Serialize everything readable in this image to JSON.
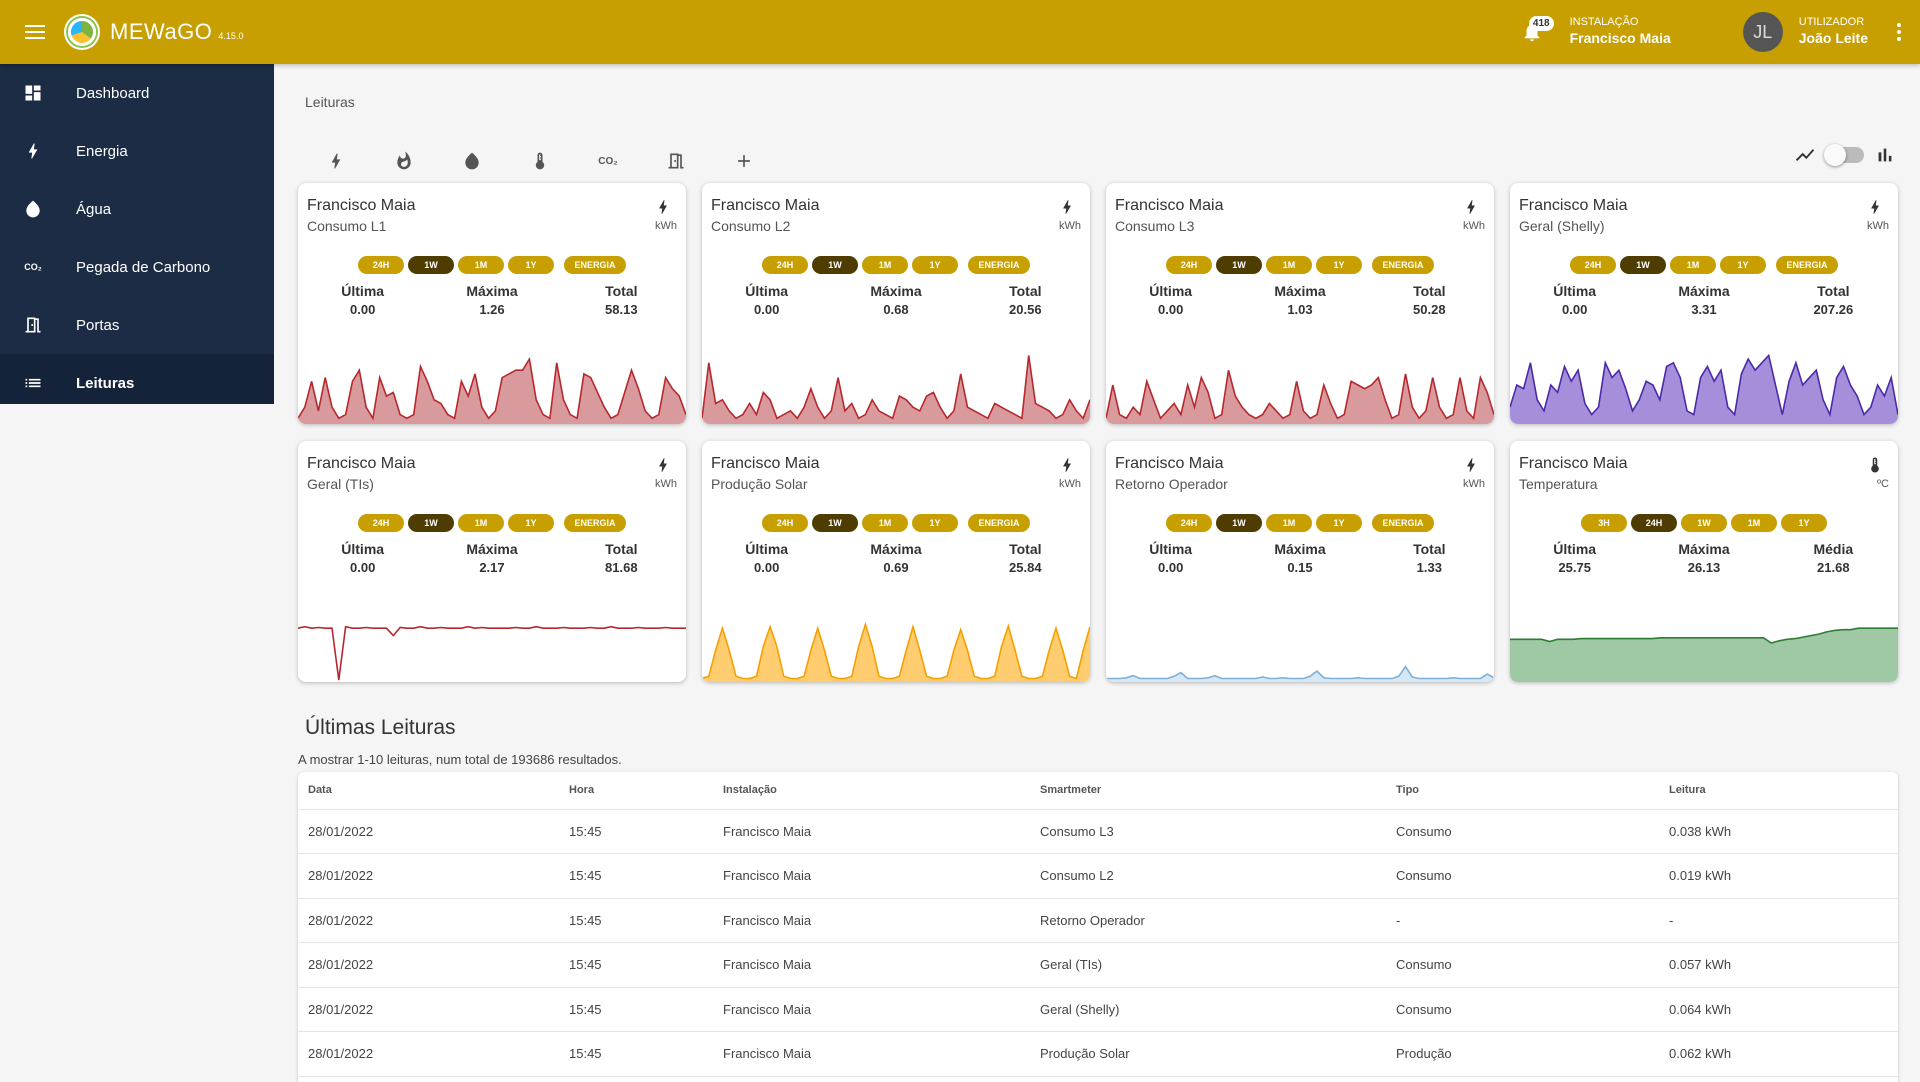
{
  "header": {
    "brand": "MEWaGO",
    "version": "4.15.0",
    "notifications_count": "418",
    "installation_label": "INSTALAÇÃO",
    "installation_name": "Francisco Maia",
    "user_label": "UTILIZADOR",
    "user_name": "João Leite",
    "user_initials": "JL",
    "accent_color": "#c89f00"
  },
  "sidebar": {
    "items": [
      {
        "label": "Dashboard",
        "icon": "dashboard-icon"
      },
      {
        "label": "Energia",
        "icon": "bolt-icon"
      },
      {
        "label": "Água",
        "icon": "water-drop-icon"
      },
      {
        "label": "Pegada de Carbono",
        "icon": "co2-icon"
      },
      {
        "label": "Portas",
        "icon": "door-icon"
      },
      {
        "label": "Leituras",
        "icon": "list-icon",
        "active": true
      }
    ]
  },
  "breadcrumb": "Leituras",
  "filters": {
    "icons": [
      "bolt-icon",
      "flame-icon",
      "water-drop-icon",
      "thermometer-icon",
      "co2-icon",
      "door-icon",
      "add-icon"
    ],
    "co2_text": "CO₂"
  },
  "cards": [
    {
      "title": "Francisco Maia",
      "subtitle": "Consumo L1",
      "unit": "kWh",
      "icon": "bolt-icon",
      "chips": [
        "24H",
        "1W",
        "1M",
        "1Y",
        "ENERGIA"
      ],
      "active_chip": "1W",
      "stats": [
        {
          "label": "Última",
          "value": "0.00"
        },
        {
          "label": "Máxima",
          "value": "1.26"
        },
        {
          "label": "Total",
          "value": "58.13"
        }
      ],
      "chart_color": "#b7282e",
      "chart_fill": "#d99a9d",
      "series": [
        0.05,
        0.2,
        0.55,
        0.15,
        0.6,
        0.2,
        0.05,
        0.1,
        0.55,
        0.7,
        0.2,
        0.05,
        0.6,
        0.35,
        0.4,
        0.1,
        0.05,
        0.1,
        0.75,
        0.55,
        0.3,
        0.25,
        0.1,
        0.05,
        0.55,
        0.35,
        0.65,
        0.2,
        0.05,
        0.15,
        0.6,
        0.65,
        0.7,
        0.7,
        0.85,
        0.3,
        0.1,
        0.05,
        0.8,
        0.3,
        0.1,
        0.05,
        0.65,
        0.6,
        0.4,
        0.2,
        0.05,
        0.1,
        0.4,
        0.7,
        0.45,
        0.15,
        0.05,
        0.1,
        0.6,
        0.45,
        0.35,
        0.1
      ]
    },
    {
      "title": "Francisco Maia",
      "subtitle": "Consumo L2",
      "unit": "kWh",
      "icon": "bolt-icon",
      "chips": [
        "24H",
        "1W",
        "1M",
        "1Y",
        "ENERGIA"
      ],
      "active_chip": "1W",
      "stats": [
        {
          "label": "Última",
          "value": "0.00"
        },
        {
          "label": "Máxima",
          "value": "0.68"
        },
        {
          "label": "Total",
          "value": "20.56"
        }
      ],
      "chart_color": "#b7282e",
      "chart_fill": "#d99a9d",
      "series": [
        0.05,
        0.8,
        0.25,
        0.3,
        0.15,
        0.05,
        0.1,
        0.25,
        0.1,
        0.4,
        0.3,
        0.05,
        0.1,
        0.15,
        0.05,
        0.2,
        0.45,
        0.2,
        0.05,
        0.15,
        0.6,
        0.15,
        0.25,
        0.05,
        0.1,
        0.3,
        0.15,
        0.1,
        0.05,
        0.35,
        0.3,
        0.2,
        0.15,
        0.35,
        0.4,
        0.2,
        0.05,
        0.15,
        0.65,
        0.2,
        0.15,
        0.1,
        0.05,
        0.25,
        0.2,
        0.15,
        0.1,
        0.05,
        0.9,
        0.25,
        0.2,
        0.15,
        0.05,
        0.1,
        0.3,
        0.15,
        0.05,
        0.3
      ]
    },
    {
      "title": "Francisco Maia",
      "subtitle": "Consumo L3",
      "unit": "kWh",
      "icon": "bolt-icon",
      "chips": [
        "24H",
        "1W",
        "1M",
        "1Y",
        "ENERGIA"
      ],
      "active_chip": "1W",
      "stats": [
        {
          "label": "Última",
          "value": "0.00"
        },
        {
          "label": "Máxima",
          "value": "1.03"
        },
        {
          "label": "Total",
          "value": "50.28"
        }
      ],
      "chart_color": "#b7282e",
      "chart_fill": "#d99a9d",
      "series": [
        0.05,
        0.5,
        0.1,
        0.05,
        0.2,
        0.1,
        0.55,
        0.3,
        0.05,
        0.15,
        0.25,
        0.1,
        0.5,
        0.2,
        0.6,
        0.4,
        0.05,
        0.1,
        0.7,
        0.35,
        0.2,
        0.1,
        0.05,
        0.1,
        0.25,
        0.15,
        0.05,
        0.1,
        0.55,
        0.15,
        0.05,
        0.1,
        0.5,
        0.25,
        0.05,
        0.1,
        0.55,
        0.5,
        0.45,
        0.5,
        0.6,
        0.3,
        0.05,
        0.1,
        0.65,
        0.2,
        0.05,
        0.15,
        0.6,
        0.2,
        0.05,
        0.1,
        0.6,
        0.15,
        0.05,
        0.6,
        0.4,
        0.1
      ]
    },
    {
      "title": "Francisco Maia",
      "subtitle": "Geral (Shelly)",
      "unit": "kWh",
      "icon": "bolt-icon",
      "chips": [
        "24H",
        "1W",
        "1M",
        "1Y",
        "ENERGIA"
      ],
      "active_chip": "1W",
      "stats": [
        {
          "label": "Última",
          "value": "0.00"
        },
        {
          "label": "Máxima",
          "value": "3.31"
        },
        {
          "label": "Total",
          "value": "207.26"
        }
      ],
      "chart_color": "#4b2aa8",
      "chart_fill": "#a58fda",
      "series": [
        0.2,
        0.5,
        0.45,
        0.8,
        0.3,
        0.15,
        0.5,
        0.4,
        0.75,
        0.55,
        0.7,
        0.25,
        0.1,
        0.2,
        0.8,
        0.6,
        0.7,
        0.45,
        0.15,
        0.3,
        0.55,
        0.5,
        0.3,
        0.75,
        0.8,
        0.6,
        0.15,
        0.1,
        0.6,
        0.75,
        0.55,
        0.7,
        0.2,
        0.1,
        0.65,
        0.85,
        0.7,
        0.8,
        0.9,
        0.5,
        0.1,
        0.55,
        0.8,
        0.5,
        0.6,
        0.7,
        0.3,
        0.1,
        0.6,
        0.75,
        0.5,
        0.35,
        0.1,
        0.2,
        0.5,
        0.35,
        0.6,
        0.1
      ]
    },
    {
      "title": "Francisco Maia",
      "subtitle": "Geral (TIs)",
      "unit": "kWh",
      "icon": "bolt-icon",
      "chips": [
        "24H",
        "1W",
        "1M",
        "1Y",
        "ENERGIA"
      ],
      "active_chip": "1W",
      "stats": [
        {
          "label": "Última",
          "value": "0.00"
        },
        {
          "label": "Máxima",
          "value": "2.17"
        },
        {
          "label": "Total",
          "value": "81.68"
        }
      ],
      "chart_color": "#b7282e",
      "chart_fill": "none",
      "series": [
        0.7,
        0.72,
        0.7,
        0.71,
        0.7,
        0.7,
        0.0,
        0.72,
        0.7,
        0.7,
        0.71,
        0.7,
        0.7,
        0.7,
        0.6,
        0.71,
        0.7,
        0.7,
        0.72,
        0.7,
        0.7,
        0.71,
        0.7,
        0.7,
        0.7,
        0.72,
        0.7,
        0.71,
        0.7,
        0.7,
        0.7,
        0.7,
        0.71,
        0.7,
        0.7,
        0.72,
        0.7,
        0.7,
        0.7,
        0.71,
        0.7,
        0.7,
        0.7,
        0.71,
        0.7,
        0.7,
        0.72,
        0.7,
        0.7,
        0.7,
        0.71,
        0.7,
        0.7,
        0.7,
        0.71,
        0.7,
        0.7,
        0.7
      ]
    },
    {
      "title": "Francisco Maia",
      "subtitle": "Produção Solar",
      "unit": "kWh",
      "icon": "bolt-icon",
      "chips": [
        "24H",
        "1W",
        "1M",
        "1Y",
        "ENERGIA"
      ],
      "active_chip": "1W",
      "stats": [
        {
          "label": "Última",
          "value": "0.00"
        },
        {
          "label": "Máxima",
          "value": "0.69"
        },
        {
          "label": "Total",
          "value": "25.84"
        }
      ],
      "chart_color": "#f5a000",
      "chart_fill": "#ffcc70",
      "series": [
        0.02,
        0.05,
        0.4,
        0.7,
        0.4,
        0.05,
        0.02,
        0.02,
        0.05,
        0.45,
        0.72,
        0.45,
        0.05,
        0.02,
        0.02,
        0.05,
        0.4,
        0.7,
        0.4,
        0.05,
        0.02,
        0.02,
        0.05,
        0.45,
        0.75,
        0.45,
        0.05,
        0.02,
        0.02,
        0.05,
        0.4,
        0.72,
        0.4,
        0.05,
        0.02,
        0.02,
        0.05,
        0.4,
        0.68,
        0.4,
        0.05,
        0.02,
        0.02,
        0.05,
        0.45,
        0.73,
        0.4,
        0.05,
        0.02,
        0.02,
        0.05,
        0.4,
        0.7,
        0.4,
        0.05,
        0.02,
        0.4,
        0.72
      ]
    },
    {
      "title": "Francisco Maia",
      "subtitle": "Retorno Operador",
      "unit": "kWh",
      "icon": "bolt-icon",
      "chips": [
        "24H",
        "1W",
        "1M",
        "1Y",
        "ENERGIA"
      ],
      "active_chip": "1W",
      "stats": [
        {
          "label": "Última",
          "value": "0.00"
        },
        {
          "label": "Máxima",
          "value": "0.15"
        },
        {
          "label": "Total",
          "value": "1.33"
        }
      ],
      "chart_color": "#7fb0d8",
      "chart_fill": "#d6e8f5",
      "series": [
        0.02,
        0.02,
        0.02,
        0.03,
        0.06,
        0.02,
        0.02,
        0.02,
        0.02,
        0.02,
        0.05,
        0.1,
        0.02,
        0.02,
        0.02,
        0.03,
        0.06,
        0.02,
        0.02,
        0.02,
        0.02,
        0.02,
        0.02,
        0.04,
        0.02,
        0.02,
        0.03,
        0.02,
        0.02,
        0.02,
        0.05,
        0.12,
        0.03,
        0.02,
        0.02,
        0.02,
        0.02,
        0.03,
        0.02,
        0.02,
        0.02,
        0.02,
        0.02,
        0.05,
        0.18,
        0.04,
        0.02,
        0.02,
        0.02,
        0.02,
        0.02,
        0.03,
        0.02,
        0.02,
        0.02,
        0.02,
        0.08,
        0.03
      ]
    },
    {
      "title": "Francisco Maia",
      "subtitle": "Temperatura",
      "unit": "ºC",
      "icon": "thermometer-icon",
      "chips": [
        "3H",
        "24H",
        "1W",
        "1M",
        "1Y"
      ],
      "active_chip": "24H",
      "stats": [
        {
          "label": "Última",
          "value": "25.75"
        },
        {
          "label": "Máxima",
          "value": "26.13"
        },
        {
          "label": "Média",
          "value": "21.68"
        }
      ],
      "chart_color": "#2e7d32",
      "chart_fill": "#9ec9a4",
      "series": [
        0.55,
        0.55,
        0.55,
        0.55,
        0.55,
        0.52,
        0.55,
        0.55,
        0.55,
        0.56,
        0.56,
        0.56,
        0.56,
        0.56,
        0.56,
        0.56,
        0.56,
        0.56,
        0.56,
        0.57,
        0.57,
        0.57,
        0.57,
        0.57,
        0.57,
        0.57,
        0.57,
        0.57,
        0.57,
        0.57,
        0.57,
        0.57,
        0.57,
        0.5,
        0.53,
        0.55,
        0.56,
        0.58,
        0.6,
        0.62,
        0.65,
        0.67,
        0.68,
        0.68,
        0.7,
        0.7,
        0.7,
        0.7,
        0.7,
        0.7
      ]
    }
  ],
  "table": {
    "title": "Últimas Leituras",
    "subtitle": "A mostrar 1-10 leituras, num total de 193686 resultados.",
    "columns": [
      "Data",
      "Hora",
      "Instalação",
      "Smartmeter",
      "Tipo",
      "Leitura"
    ],
    "rows": [
      [
        "28/01/2022",
        "15:45",
        "Francisco Maia",
        "Consumo L3",
        "Consumo",
        "0.038 kWh"
      ],
      [
        "28/01/2022",
        "15:45",
        "Francisco Maia",
        "Consumo L2",
        "Consumo",
        "0.019 kWh"
      ],
      [
        "28/01/2022",
        "15:45",
        "Francisco Maia",
        "Retorno Operador",
        "-",
        "-"
      ],
      [
        "28/01/2022",
        "15:45",
        "Francisco Maia",
        "Geral (TIs)",
        "Consumo",
        "0.057 kWh"
      ],
      [
        "28/01/2022",
        "15:45",
        "Francisco Maia",
        "Geral (Shelly)",
        "Consumo",
        "0.064 kWh"
      ],
      [
        "28/01/2022",
        "15:45",
        "Francisco Maia",
        "Produção Solar",
        "Produção",
        "0.062 kWh"
      ]
    ]
  }
}
